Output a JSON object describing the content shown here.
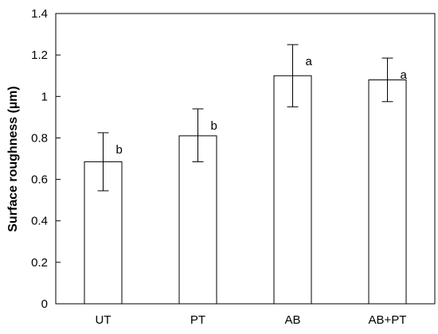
{
  "chart_data": {
    "type": "bar",
    "title": "",
    "xlabel": "",
    "ylabel": "Surface roughness (µm)",
    "categories": [
      "UT",
      "PT",
      "AB",
      "AB+PT"
    ],
    "values": [
      0.685,
      0.81,
      1.1,
      1.08
    ],
    "error_low": [
      0.545,
      0.685,
      0.95,
      0.975
    ],
    "error_high": [
      0.825,
      0.94,
      1.25,
      1.185
    ],
    "significance_labels": [
      "b",
      "b",
      "a",
      "a"
    ],
    "ylim": [
      0,
      1.4
    ],
    "yticks": [
      0,
      0.2,
      0.4,
      0.6,
      0.8,
      1,
      1.2,
      1.4
    ],
    "ytick_labels": [
      "0",
      "0.2",
      "0.4",
      "0.6",
      "0.8",
      "1",
      "1.2",
      "1.4"
    ],
    "grid": false,
    "legend": "none",
    "colors": {
      "bar_fill": "#ffffff",
      "bar_stroke": "#000000",
      "axis": "#000000"
    }
  }
}
